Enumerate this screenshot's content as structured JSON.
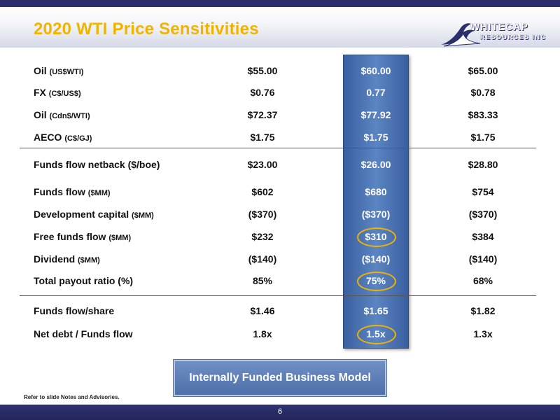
{
  "header": {
    "title": "2020 WTI Price Sensitivities",
    "logo": {
      "main": "WHITECAP",
      "sub": "RESOURCES INC"
    }
  },
  "colors": {
    "accent": "#f0b400",
    "navy": "#2b2f6b",
    "highlight": "#4a72b0"
  },
  "table": {
    "rows": [
      {
        "label": "Oil",
        "unit": "(US$WTI)",
        "values": [
          "$55.00",
          "$60.00",
          "$65.00"
        ]
      },
      {
        "label": "FX",
        "unit": "(C$/US$)",
        "values": [
          "$0.76",
          "0.77",
          "$0.78"
        ]
      },
      {
        "label": "Oil",
        "unit": "(Cdn$/WTI)",
        "values": [
          "$72.37",
          "$77.92",
          "$83.33"
        ]
      },
      {
        "label": "AECO",
        "unit": "(C$/GJ)",
        "values": [
          "$1.75",
          "$1.75",
          "$1.75"
        ]
      },
      {
        "label": "Funds flow netback ($/boe)",
        "unit": "",
        "values": [
          "$23.00",
          "$26.00",
          "$28.80"
        ]
      },
      {
        "label": "Funds flow",
        "unit": "($MM)",
        "values": [
          "$602",
          "$680",
          "$754"
        ]
      },
      {
        "label": "Development capital",
        "unit": "($MM)",
        "values": [
          "($370)",
          "($370)",
          "($370)"
        ]
      },
      {
        "label": "Free funds flow",
        "unit": "($MM)",
        "values": [
          "$232",
          "$310",
          "$384"
        ]
      },
      {
        "label": "Dividend",
        "unit": "($MM)",
        "values": [
          "($140)",
          "($140)",
          "($140)"
        ]
      },
      {
        "label": "Total payout ratio (%)",
        "unit": "",
        "values": [
          "85%",
          "75%",
          "68%"
        ]
      },
      {
        "label": "Funds flow/share",
        "unit": "",
        "values": [
          "$1.46",
          "$1.65",
          "$1.82"
        ]
      },
      {
        "label": "Net debt / Funds flow",
        "unit": "",
        "values": [
          "1.8x",
          "1.5x",
          "1.3x"
        ]
      }
    ]
  },
  "callout": "Internally Funded Business Model",
  "footnote": "Refer to slide Notes and Advisories.",
  "page_number": "6"
}
